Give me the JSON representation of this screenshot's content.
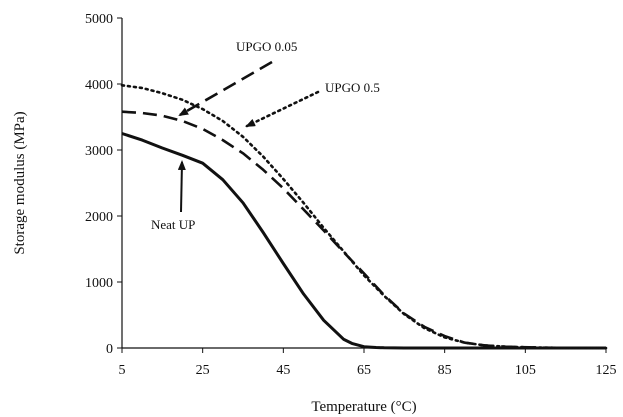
{
  "chart_data": {
    "type": "line",
    "title": "",
    "xlabel": "Temperature (°C)",
    "ylabel": "Storage modulus (MPa)",
    "xlim": [
      5,
      125
    ],
    "ylim": [
      0,
      5000
    ],
    "xticks": [
      5,
      25,
      45,
      65,
      85,
      105,
      125
    ],
    "yticks": [
      0,
      1000,
      2000,
      3000,
      4000,
      5000
    ],
    "grid": false,
    "legend": "none",
    "series": [
      {
        "name": "Neat UP",
        "style": "solid",
        "x": [
          5,
          10,
          15,
          20,
          25,
          30,
          35,
          40,
          45,
          50,
          55,
          60,
          62,
          65,
          68,
          70,
          75,
          80,
          90,
          100,
          110,
          125
        ],
        "y": [
          3250,
          3150,
          3030,
          2920,
          2800,
          2550,
          2200,
          1750,
          1280,
          820,
          420,
          130,
          70,
          20,
          8,
          3,
          0,
          0,
          0,
          0,
          0,
          0
        ]
      },
      {
        "name": "UPGO 0.05",
        "style": "dashed",
        "x": [
          5,
          10,
          15,
          20,
          25,
          30,
          35,
          40,
          45,
          50,
          55,
          60,
          65,
          70,
          75,
          80,
          85,
          90,
          95,
          100,
          110,
          125
        ],
        "y": [
          3580,
          3560,
          3520,
          3440,
          3320,
          3150,
          2950,
          2700,
          2420,
          2100,
          1780,
          1450,
          1130,
          800,
          520,
          320,
          180,
          80,
          40,
          20,
          5,
          0
        ]
      },
      {
        "name": "UPGO 0.5",
        "style": "dotted",
        "x": [
          5,
          10,
          15,
          20,
          25,
          30,
          35,
          40,
          45,
          50,
          55,
          60,
          65,
          70,
          75,
          80,
          85,
          90,
          95,
          100,
          110,
          125
        ],
        "y": [
          3980,
          3940,
          3860,
          3760,
          3620,
          3440,
          3200,
          2900,
          2560,
          2200,
          1820,
          1460,
          1100,
          790,
          510,
          300,
          160,
          80,
          40,
          20,
          5,
          0
        ]
      }
    ],
    "annotations": [
      {
        "text": "UPGO 0.05",
        "target_series": "UPGO 0.05"
      },
      {
        "text": "UPGO 0.5",
        "target_series": "UPGO 0.5"
      },
      {
        "text": "Neat UP",
        "target_series": "Neat UP"
      }
    ]
  }
}
